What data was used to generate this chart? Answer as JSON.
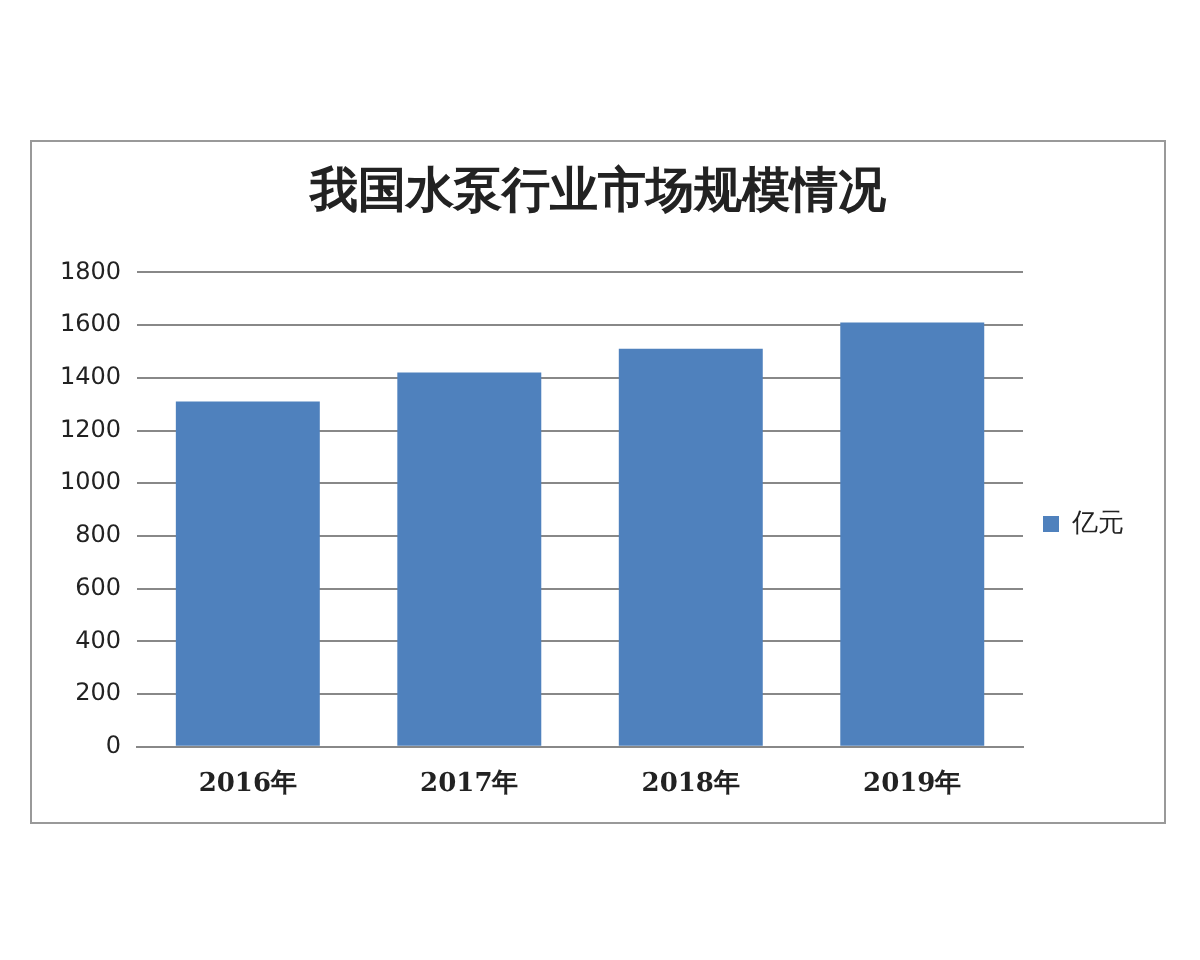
{
  "chart_data": {
    "type": "bar",
    "title": "我国水泵行业市场规模情况",
    "categories": [
      "2016年",
      "2017年",
      "2018年",
      "2019年"
    ],
    "series": [
      {
        "name": "亿元",
        "color": "#4f81bd",
        "values": [
          1310,
          1420,
          1510,
          1610
        ]
      }
    ],
    "ylim": [
      0,
      1800
    ],
    "yticks": [
      0,
      200,
      400,
      600,
      800,
      1000,
      1200,
      1400,
      1600,
      1800
    ],
    "grid": "y",
    "legend": "right"
  }
}
